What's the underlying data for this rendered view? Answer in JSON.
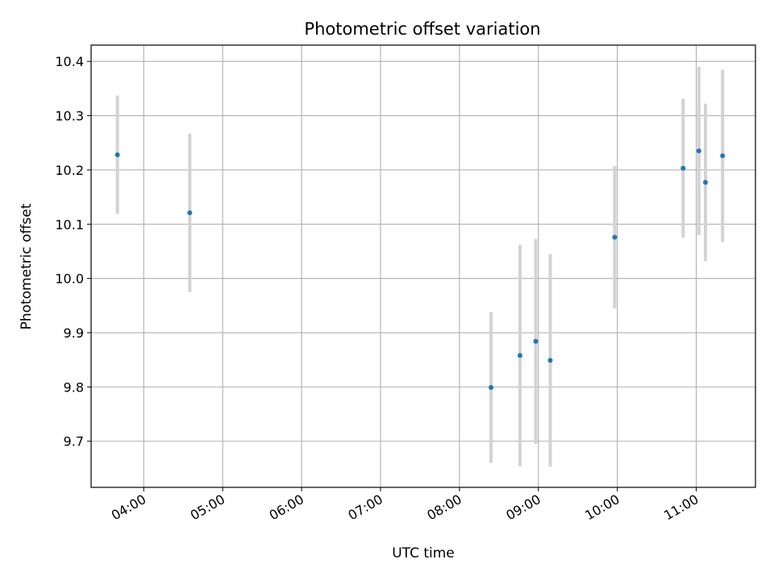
{
  "chart_data": {
    "type": "scatter",
    "title": "Photometric offset variation",
    "xlabel": "UTC time",
    "ylabel": "Photometric offset",
    "x_axis_type": "time",
    "xlim": [
      "03:20",
      "11:45"
    ],
    "ylim": [
      9.615,
      10.43
    ],
    "grid": true,
    "x_ticks": [
      "04:00",
      "05:00",
      "06:00",
      "07:00",
      "08:00",
      "09:00",
      "10:00",
      "11:00"
    ],
    "y_ticks": [
      9.7,
      9.8,
      9.9,
      10.0,
      10.1,
      10.2,
      10.3,
      10.4
    ],
    "y_tick_labels": [
      "9.7",
      "9.8",
      "9.9",
      "10.0",
      "10.1",
      "10.2",
      "10.3",
      "10.4"
    ],
    "series": [
      {
        "x": [
          "03:40",
          "04:35",
          "08:24",
          "08:46",
          "08:58",
          "09:09",
          "09:58",
          "10:50",
          "11:02",
          "11:07",
          "11:20"
        ],
        "y": [
          10.228,
          10.121,
          9.799,
          9.858,
          9.884,
          9.849,
          10.076,
          10.203,
          10.235,
          10.177,
          10.226
        ],
        "y_err": [
          0.109,
          0.146,
          0.139,
          0.204,
          0.189,
          0.196,
          0.131,
          0.128,
          0.155,
          0.145,
          0.159
        ]
      }
    ],
    "colors": {
      "point": "#1f77b4",
      "errorbar": "#d3d3d3",
      "grid": "#b0b0b0"
    }
  }
}
